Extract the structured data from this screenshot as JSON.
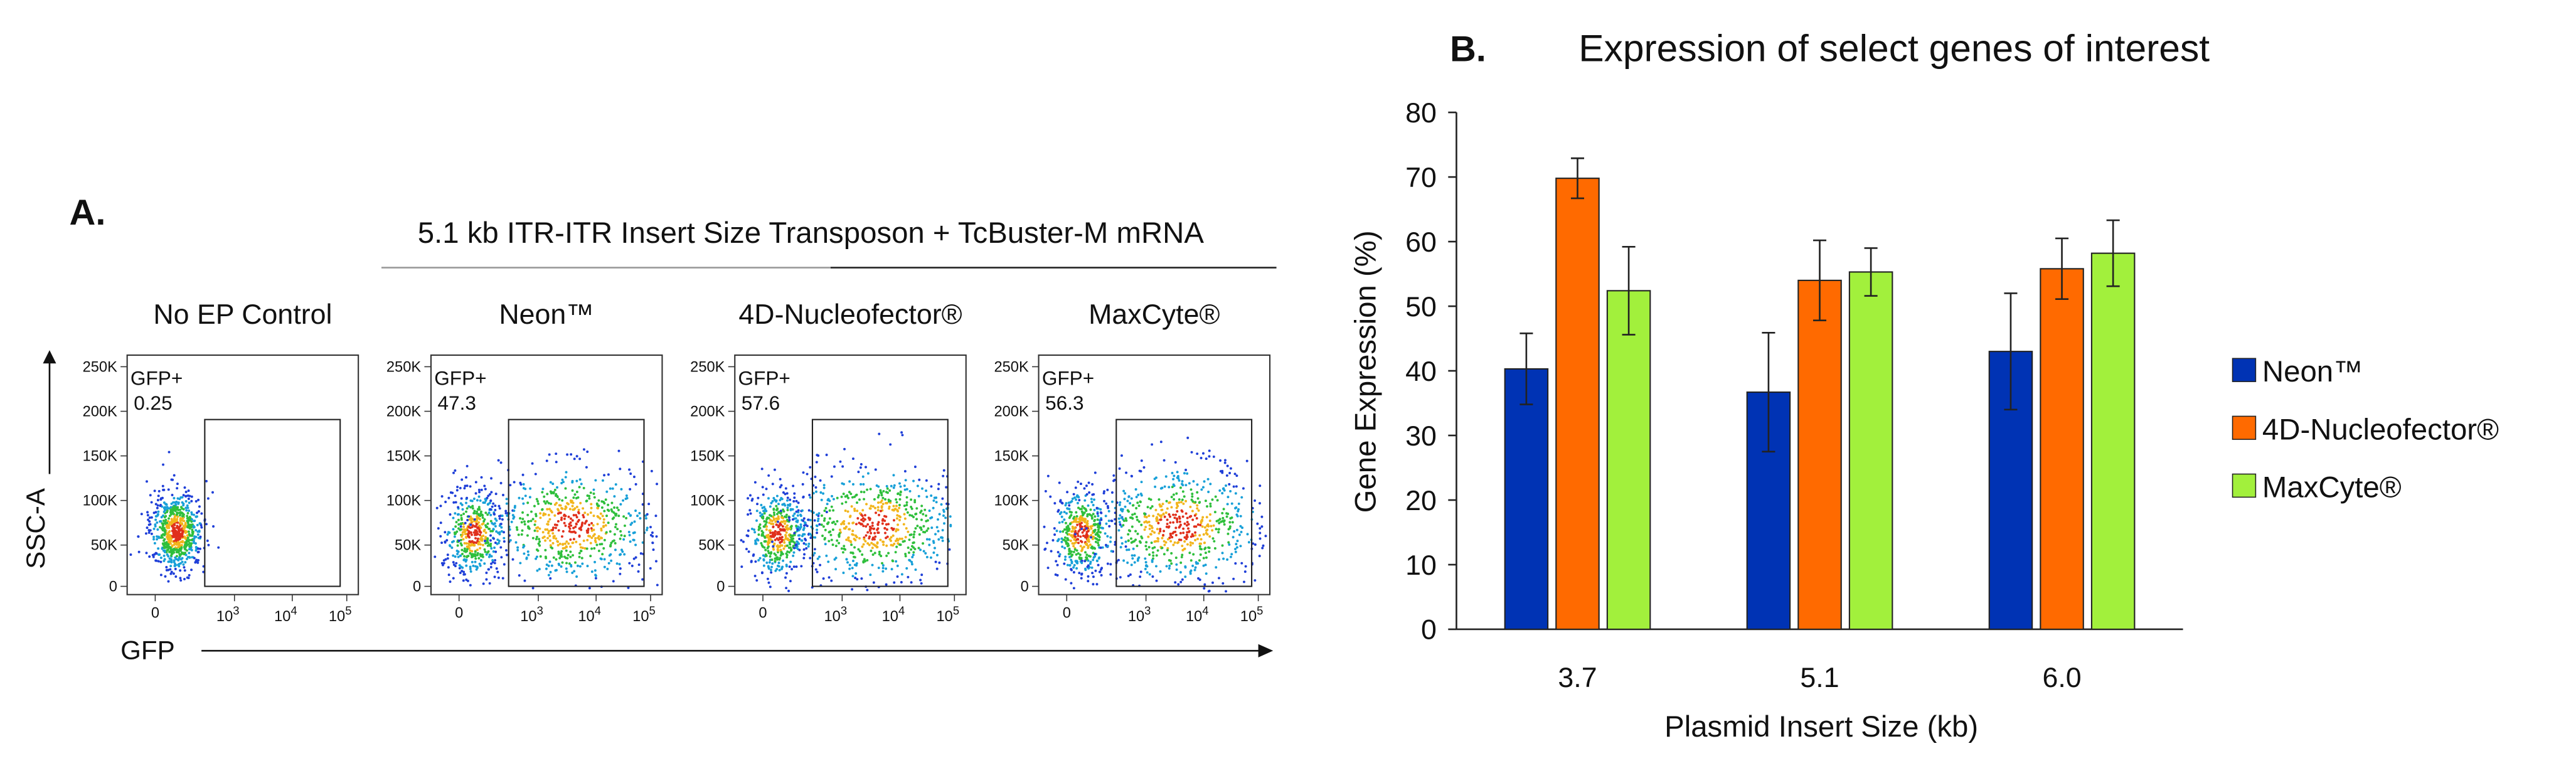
{
  "panel_a": {
    "label": "A.",
    "title": "5.1 kb ITR-ITR Insert Size Transposon + TcBuster-M mRNA",
    "y_axis_label": "SSC-A",
    "x_axis_label": "GFP",
    "y_ticks": [
      "250K",
      "200K",
      "150K",
      "100K",
      "50K",
      "0"
    ],
    "x_ticks": [
      "0",
      {
        "base": "10",
        "exp": "3"
      },
      {
        "base": "10",
        "exp": "4"
      },
      {
        "base": "10",
        "exp": "5"
      }
    ],
    "plots": [
      {
        "title": "No EP Control",
        "gate_label": "GFP+",
        "gate_value": 0.25
      },
      {
        "title": "Neon™",
        "gate_label": "GFP+",
        "gate_value": 47.3
      },
      {
        "title": "4D-Nucleofector®",
        "gate_label": "GFP+",
        "gate_value": 57.6
      },
      {
        "title": "MaxCyte®",
        "gate_label": "GFP+",
        "gate_value": 56.3
      }
    ]
  },
  "chart_data": {
    "type": "bar",
    "label": "B.",
    "title": "Expression of select genes of interest",
    "x_label": "Plasmid Insert Size (kb)",
    "y_label": "Gene Expression (%)",
    "categories": [
      "3.7",
      "5.1",
      "6.0"
    ],
    "series": [
      {
        "name": "Neon™",
        "color": "#0033b4",
        "values": [
          40.3,
          36.7,
          43.0
        ],
        "errors": [
          5.5,
          9.2,
          9.0
        ]
      },
      {
        "name": "4D-Nucleofector®",
        "color": "#ff6a00",
        "values": [
          69.8,
          54.0,
          55.8
        ],
        "errors": [
          3.1,
          6.2,
          4.7
        ]
      },
      {
        "name": "MaxCyte®",
        "color": "#a2f03c",
        "values": [
          52.4,
          55.3,
          58.2
        ],
        "errors": [
          6.8,
          3.7,
          5.1
        ]
      }
    ],
    "ylim": [
      0,
      80
    ],
    "yticks": [
      0,
      10,
      20,
      30,
      40,
      50,
      60,
      70,
      80
    ],
    "legend": "right"
  }
}
